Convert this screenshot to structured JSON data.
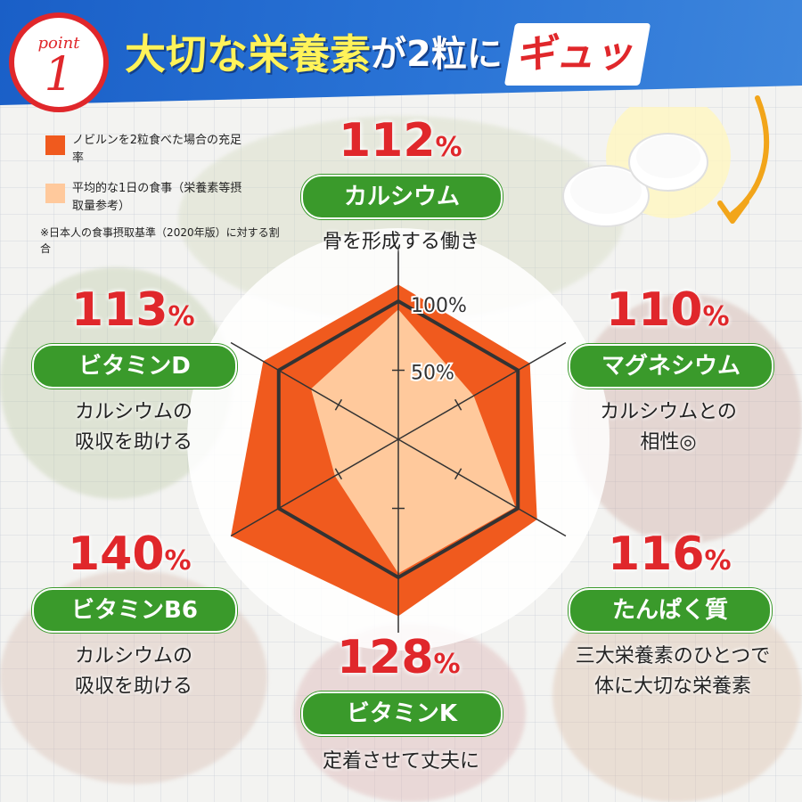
{
  "header": {
    "badge_word": "point",
    "badge_number": "1",
    "title_main": "大切な栄養素",
    "title_mid": "が2粒に",
    "title_accent": "ギュッ"
  },
  "legend": {
    "item1": "ノビルンを2粒食べた場合の充足率",
    "item2": "平均的な1日の食事（栄養素等摂取量参考）",
    "note": "※日本人の食事摂取基準（2020年版）に対する割合",
    "color1": "#f05a1e",
    "color2": "#ffc99c"
  },
  "chart_data": {
    "type": "radar",
    "axes": [
      "カルシウム",
      "マグネシウム",
      "たんぱく質",
      "ビタミンK",
      "ビタミンB6",
      "ビタミンD"
    ],
    "tick_labels": [
      "50%",
      "100%"
    ],
    "series": [
      {
        "name": "ノビルンを2粒食べた場合の充足率",
        "values": [
          112,
          110,
          116,
          128,
          140,
          113
        ]
      },
      {
        "name": "平均的な1日の食事",
        "values": [
          94,
          63,
          98,
          97,
          53,
          73
        ]
      }
    ],
    "rmax": 140
  },
  "items": [
    {
      "value": "112",
      "unit": "%",
      "name": "カルシウム",
      "desc1": "骨を形成する働き",
      "desc2": ""
    },
    {
      "value": "110",
      "unit": "%",
      "name": "マグネシウム",
      "desc1": "カルシウムとの",
      "desc2": "相性◎"
    },
    {
      "value": "116",
      "unit": "%",
      "name": "たんぱく質",
      "desc1": "三大栄養素のひとつで",
      "desc2": "体に大切な栄養素"
    },
    {
      "value": "128",
      "unit": "%",
      "name": "ビタミンK",
      "desc1": "定着させて丈夫に",
      "desc2": ""
    },
    {
      "value": "140",
      "unit": "%",
      "name": "ビタミンB6",
      "desc1": "カルシウムの",
      "desc2": "吸収を助ける"
    },
    {
      "value": "113",
      "unit": "%",
      "name": "ビタミンD",
      "desc1": "カルシウムの",
      "desc2": "吸収を助ける"
    }
  ]
}
